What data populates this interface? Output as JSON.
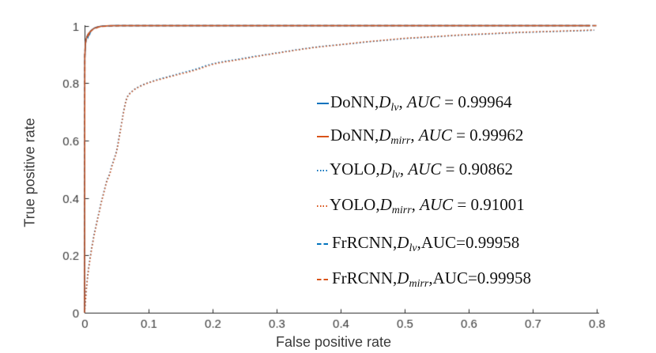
{
  "figure": {
    "background": "#ffffff",
    "axis_color": "#262626",
    "tick_label_color": "#3a3a3a",
    "blue": "#0072BD",
    "orange": "#D95319"
  },
  "chart_data": {
    "type": "line",
    "title": "",
    "xlabel": "False positive rate",
    "ylabel": "True positive rate",
    "xlim": [
      0,
      0.8
    ],
    "ylim": [
      0,
      1
    ],
    "xticks": [
      0,
      0.1,
      0.2,
      0.3,
      0.4,
      0.5,
      0.6,
      0.7,
      0.8
    ],
    "yticks": [
      0,
      0.2,
      0.4,
      0.6,
      0.8,
      1
    ],
    "xticklabels": [
      "0",
      "0.1",
      "0.2",
      "0.3",
      "0.4",
      "0.5",
      "0.6",
      "0.7",
      "0.8"
    ],
    "yticklabels": [
      "0",
      "0.2",
      "0.4",
      "0.6",
      "0.8",
      "1"
    ],
    "grid": false,
    "legend_position": "right-center",
    "series": [
      {
        "name": "DoNN, D_lv",
        "auc": 0.99964,
        "color": "#0072BD",
        "style": "solid",
        "points": [
          [
            0,
            0
          ],
          [
            0.0004,
            0.885
          ],
          [
            0.001,
            0.92
          ],
          [
            0.0016,
            0.938
          ],
          [
            0.0022,
            0.948
          ],
          [
            0.003,
            0.955
          ],
          [
            0.004,
            0.962
          ],
          [
            0.005,
            0.966
          ],
          [
            0.0055,
            0.962
          ],
          [
            0.006,
            0.97
          ],
          [
            0.007,
            0.974
          ],
          [
            0.008,
            0.97
          ],
          [
            0.009,
            0.977
          ],
          [
            0.01,
            0.981
          ],
          [
            0.0115,
            0.985
          ],
          [
            0.013,
            0.988
          ],
          [
            0.015,
            0.991
          ],
          [
            0.017,
            0.993
          ],
          [
            0.019,
            0.9945
          ],
          [
            0.021,
            0.9955
          ],
          [
            0.024,
            0.997
          ],
          [
            0.027,
            0.998
          ],
          [
            0.031,
            0.999
          ],
          [
            0.036,
            0.9995
          ],
          [
            0.042,
            1.0
          ],
          [
            0.79,
            1.0
          ]
        ]
      },
      {
        "name": "DoNN, D_mirr",
        "auc": 0.99962,
        "color": "#D95319",
        "style": "solid",
        "points": [
          [
            0,
            0
          ],
          [
            0.0004,
            0.89
          ],
          [
            0.001,
            0.924
          ],
          [
            0.0016,
            0.941
          ],
          [
            0.0022,
            0.95
          ],
          [
            0.003,
            0.957
          ],
          [
            0.004,
            0.963
          ],
          [
            0.005,
            0.968
          ],
          [
            0.006,
            0.972
          ],
          [
            0.0065,
            0.968
          ],
          [
            0.0075,
            0.975
          ],
          [
            0.0085,
            0.978
          ],
          [
            0.01,
            0.982
          ],
          [
            0.012,
            0.986
          ],
          [
            0.014,
            0.989
          ],
          [
            0.016,
            0.992
          ],
          [
            0.018,
            0.994
          ],
          [
            0.021,
            0.996
          ],
          [
            0.025,
            0.9975
          ],
          [
            0.029,
            0.9985
          ],
          [
            0.034,
            0.9993
          ],
          [
            0.04,
            1.0
          ],
          [
            0.79,
            1.0
          ]
        ]
      },
      {
        "name": "YOLO, D_lv",
        "auc": 0.90862,
        "color": "#0072BD",
        "style": "dotted",
        "points": [
          [
            0,
            0
          ],
          [
            0.001,
            0.03
          ],
          [
            0.002,
            0.062
          ],
          [
            0.003,
            0.09
          ],
          [
            0.004,
            0.113
          ],
          [
            0.005,
            0.134
          ],
          [
            0.006,
            0.152
          ],
          [
            0.0075,
            0.175
          ],
          [
            0.009,
            0.197
          ],
          [
            0.0105,
            0.218
          ],
          [
            0.012,
            0.238
          ],
          [
            0.014,
            0.262
          ],
          [
            0.016,
            0.285
          ],
          [
            0.018,
            0.306
          ],
          [
            0.02,
            0.326
          ],
          [
            0.0225,
            0.35
          ],
          [
            0.025,
            0.375
          ],
          [
            0.0275,
            0.398
          ],
          [
            0.03,
            0.42
          ],
          [
            0.032,
            0.438
          ],
          [
            0.034,
            0.455
          ],
          [
            0.036,
            0.468
          ],
          [
            0.038,
            0.477
          ],
          [
            0.04,
            0.49
          ],
          [
            0.042,
            0.51
          ],
          [
            0.044,
            0.522
          ],
          [
            0.046,
            0.535
          ],
          [
            0.048,
            0.549
          ],
          [
            0.05,
            0.564
          ],
          [
            0.052,
            0.588
          ],
          [
            0.054,
            0.613
          ],
          [
            0.056,
            0.638
          ],
          [
            0.058,
            0.663
          ],
          [
            0.06,
            0.69
          ],
          [
            0.062,
            0.714
          ],
          [
            0.064,
            0.734
          ],
          [
            0.066,
            0.749
          ],
          [
            0.068,
            0.757
          ],
          [
            0.071,
            0.765
          ],
          [
            0.075,
            0.773
          ],
          [
            0.079,
            0.78
          ],
          [
            0.085,
            0.788
          ],
          [
            0.092,
            0.795
          ],
          [
            0.1,
            0.802
          ],
          [
            0.11,
            0.809
          ],
          [
            0.12,
            0.816
          ],
          [
            0.13,
            0.822
          ],
          [
            0.14,
            0.828
          ],
          [
            0.15,
            0.834
          ],
          [
            0.16,
            0.84
          ],
          [
            0.17,
            0.846
          ],
          [
            0.18,
            0.853
          ],
          [
            0.19,
            0.861
          ],
          [
            0.2,
            0.867
          ],
          [
            0.21,
            0.872
          ],
          [
            0.22,
            0.876
          ],
          [
            0.24,
            0.883
          ],
          [
            0.26,
            0.891
          ],
          [
            0.28,
            0.898
          ],
          [
            0.3,
            0.905
          ],
          [
            0.32,
            0.912
          ],
          [
            0.34,
            0.919
          ],
          [
            0.36,
            0.925
          ],
          [
            0.38,
            0.93
          ],
          [
            0.4,
            0.934
          ],
          [
            0.42,
            0.938
          ],
          [
            0.44,
            0.943
          ],
          [
            0.46,
            0.947
          ],
          [
            0.48,
            0.951
          ],
          [
            0.5,
            0.955
          ],
          [
            0.53,
            0.959
          ],
          [
            0.56,
            0.963
          ],
          [
            0.59,
            0.967
          ],
          [
            0.62,
            0.97
          ],
          [
            0.65,
            0.973
          ],
          [
            0.68,
            0.976
          ],
          [
            0.71,
            0.978
          ],
          [
            0.74,
            0.98
          ],
          [
            0.77,
            0.982
          ],
          [
            0.796,
            0.984
          ]
        ]
      },
      {
        "name": "YOLO, D_mirr",
        "auc": 0.91001,
        "color": "#D95319",
        "style": "dotted",
        "points": [
          [
            0,
            0
          ],
          [
            0.001,
            0.026
          ],
          [
            0.002,
            0.055
          ],
          [
            0.003,
            0.083
          ],
          [
            0.004,
            0.107
          ],
          [
            0.005,
            0.128
          ],
          [
            0.006,
            0.147
          ],
          [
            0.0075,
            0.17
          ],
          [
            0.009,
            0.192
          ],
          [
            0.0105,
            0.213
          ],
          [
            0.012,
            0.234
          ],
          [
            0.014,
            0.258
          ],
          [
            0.016,
            0.28
          ],
          [
            0.018,
            0.301
          ],
          [
            0.02,
            0.322
          ],
          [
            0.0225,
            0.347
          ],
          [
            0.025,
            0.372
          ],
          [
            0.0275,
            0.396
          ],
          [
            0.03,
            0.417
          ],
          [
            0.032,
            0.435
          ],
          [
            0.034,
            0.452
          ],
          [
            0.036,
            0.464
          ],
          [
            0.038,
            0.474
          ],
          [
            0.04,
            0.487
          ],
          [
            0.042,
            0.505
          ],
          [
            0.044,
            0.518
          ],
          [
            0.046,
            0.532
          ],
          [
            0.048,
            0.546
          ],
          [
            0.05,
            0.56
          ],
          [
            0.052,
            0.583
          ],
          [
            0.054,
            0.608
          ],
          [
            0.056,
            0.634
          ],
          [
            0.058,
            0.66
          ],
          [
            0.06,
            0.686
          ],
          [
            0.062,
            0.71
          ],
          [
            0.064,
            0.731
          ],
          [
            0.066,
            0.747
          ],
          [
            0.068,
            0.756
          ],
          [
            0.071,
            0.764
          ],
          [
            0.075,
            0.772
          ],
          [
            0.079,
            0.779
          ],
          [
            0.085,
            0.787
          ],
          [
            0.092,
            0.794
          ],
          [
            0.1,
            0.801
          ],
          [
            0.11,
            0.808
          ],
          [
            0.12,
            0.814
          ],
          [
            0.13,
            0.82
          ],
          [
            0.14,
            0.826
          ],
          [
            0.15,
            0.832
          ],
          [
            0.16,
            0.837
          ],
          [
            0.17,
            0.843
          ],
          [
            0.18,
            0.85
          ],
          [
            0.19,
            0.858
          ],
          [
            0.2,
            0.865
          ],
          [
            0.21,
            0.87
          ],
          [
            0.22,
            0.874
          ],
          [
            0.24,
            0.881
          ],
          [
            0.26,
            0.889
          ],
          [
            0.28,
            0.897
          ],
          [
            0.3,
            0.904
          ],
          [
            0.32,
            0.911
          ],
          [
            0.34,
            0.918
          ],
          [
            0.36,
            0.924
          ],
          [
            0.38,
            0.929
          ],
          [
            0.4,
            0.934
          ],
          [
            0.42,
            0.939
          ],
          [
            0.44,
            0.944
          ],
          [
            0.46,
            0.948
          ],
          [
            0.48,
            0.952
          ],
          [
            0.5,
            0.956
          ],
          [
            0.53,
            0.96
          ],
          [
            0.56,
            0.964
          ],
          [
            0.59,
            0.968
          ],
          [
            0.62,
            0.971
          ],
          [
            0.65,
            0.974
          ],
          [
            0.68,
            0.977
          ],
          [
            0.71,
            0.979
          ],
          [
            0.74,
            0.981
          ],
          [
            0.77,
            0.983
          ],
          [
            0.796,
            0.985
          ]
        ]
      },
      {
        "name": "FrRCNN, D_lv",
        "auc": 0.99958,
        "color": "#0072BD",
        "style": "dashed",
        "points": [
          [
            0,
            0
          ],
          [
            0.0004,
            0.9
          ],
          [
            0.001,
            0.93
          ],
          [
            0.002,
            0.95
          ],
          [
            0.004,
            0.963
          ],
          [
            0.006,
            0.972
          ],
          [
            0.009,
            0.98
          ],
          [
            0.012,
            0.986
          ],
          [
            0.016,
            0.991
          ],
          [
            0.021,
            0.995
          ],
          [
            0.028,
            0.998
          ],
          [
            0.04,
            0.9995
          ],
          [
            0.06,
            1.0
          ],
          [
            0.8,
            1.0
          ]
        ]
      },
      {
        "name": "FrRCNN, D_mirr",
        "auc": 0.99958,
        "color": "#D95319",
        "style": "dashed",
        "points": [
          [
            0,
            0
          ],
          [
            0.0004,
            0.895
          ],
          [
            0.001,
            0.928
          ],
          [
            0.002,
            0.949
          ],
          [
            0.004,
            0.962
          ],
          [
            0.006,
            0.971
          ],
          [
            0.009,
            0.979
          ],
          [
            0.012,
            0.985
          ],
          [
            0.016,
            0.99
          ],
          [
            0.021,
            0.9945
          ],
          [
            0.028,
            0.9975
          ],
          [
            0.04,
            0.999
          ],
          [
            0.06,
            1.0
          ],
          [
            0.8,
            1.0
          ]
        ]
      }
    ]
  },
  "legend": {
    "items": [
      {
        "marker": "solid",
        "color": "#0072BD",
        "segments": [
          {
            "t": "DoNN,",
            "f": "rm"
          },
          {
            "t": "D",
            "f": "it"
          },
          {
            "t": "lv",
            "f": "sub"
          },
          {
            "t": ", ",
            "f": "rm"
          },
          {
            "t": "AUC",
            "f": "it"
          },
          {
            "t": " = 0.99964",
            "f": "rm"
          }
        ]
      },
      {
        "marker": "solid",
        "color": "#D95319",
        "segments": [
          {
            "t": "DoNN,",
            "f": "rm"
          },
          {
            "t": "D",
            "f": "it"
          },
          {
            "t": "mirr",
            "f": "sub"
          },
          {
            "t": ", ",
            "f": "rm"
          },
          {
            "t": "AUC",
            "f": "it"
          },
          {
            "t": " = 0.99962",
            "f": "rm"
          }
        ]
      },
      {
        "marker": "dotted",
        "color": "#0072BD",
        "segments": [
          {
            "t": "YOLO,",
            "f": "rm"
          },
          {
            "t": "D",
            "f": "it"
          },
          {
            "t": "lv",
            "f": "sub"
          },
          {
            "t": ", ",
            "f": "rm"
          },
          {
            "t": "AUC",
            "f": "it"
          },
          {
            "t": " = 0.90862",
            "f": "rm"
          }
        ]
      },
      {
        "marker": "dotted",
        "color": "#D95319",
        "segments": [
          {
            "t": "YOLO,",
            "f": "rm"
          },
          {
            "t": "D",
            "f": "it"
          },
          {
            "t": "mirr",
            "f": "sub"
          },
          {
            "t": ", ",
            "f": "rm"
          },
          {
            "t": "AUC",
            "f": "it"
          },
          {
            "t": " = 0.91001",
            "f": "rm"
          }
        ]
      },
      {
        "marker": "dashed",
        "color": "#0072BD",
        "segments": [
          {
            "t": "FrRCNN,",
            "f": "rm"
          },
          {
            "t": "D",
            "f": "it"
          },
          {
            "t": "lv",
            "f": "sub"
          },
          {
            "t": ",AUC=0.99958",
            "f": "rm"
          }
        ]
      },
      {
        "marker": "dashed",
        "color": "#D95319",
        "segments": [
          {
            "t": "FrRCNN,",
            "f": "rm"
          },
          {
            "t": "D",
            "f": "it"
          },
          {
            "t": "mirr",
            "f": "sub"
          },
          {
            "t": ",AUC=0.99958",
            "f": "rm"
          }
        ]
      }
    ]
  }
}
